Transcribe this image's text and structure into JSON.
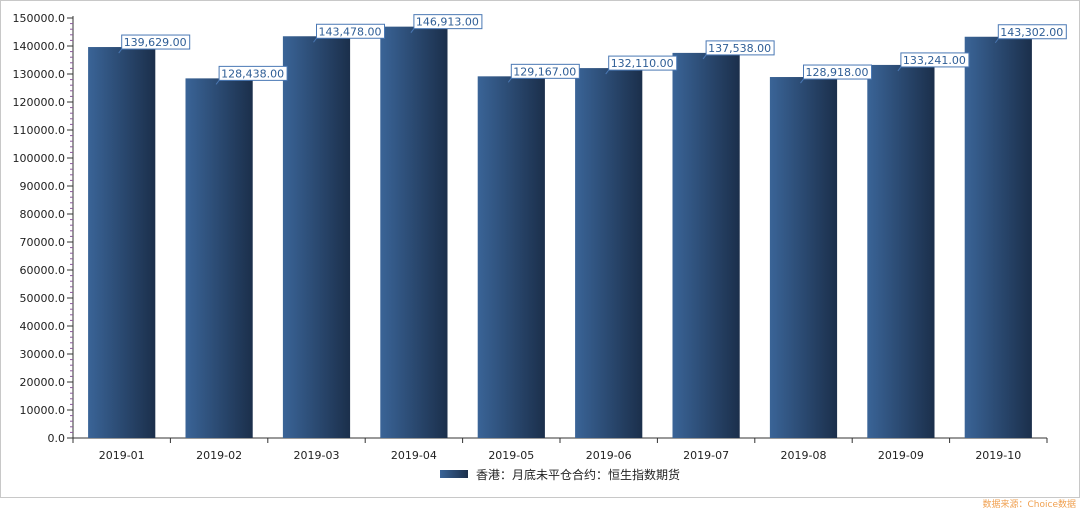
{
  "chart_data": {
    "type": "bar",
    "categories": [
      "2019-01",
      "2019-02",
      "2019-03",
      "2019-04",
      "2019-05",
      "2019-06",
      "2019-07",
      "2019-08",
      "2019-09",
      "2019-10"
    ],
    "series": [
      {
        "name": "香港：月底未平仓合约：恒生指数期货",
        "values": [
          139629,
          128438,
          143478,
          146913,
          129167,
          132110,
          137538,
          128918,
          133241,
          143302
        ],
        "labels": [
          "139,629.00",
          "128,438.00",
          "143,478.00",
          "146,913.00",
          "129,167.00",
          "132,110.00",
          "137,538.00",
          "128,918.00",
          "133,241.00",
          "143,302.00"
        ]
      }
    ],
    "y_ticks": [
      "0.0",
      "10000.0",
      "20000.0",
      "30000.0",
      "40000.0",
      "50000.0",
      "60000.0",
      "70000.0",
      "80000.0",
      "90000.0",
      "100000.0",
      "110000.0",
      "120000.0",
      "130000.0",
      "140000.0",
      "150000.0"
    ],
    "ylim": [
      0,
      150000
    ],
    "title": "",
    "xlabel": "",
    "ylabel": "",
    "grid": false,
    "legend_position": "bottom-center",
    "colors": {
      "bar_light": "#3a6497",
      "bar_dark": "#1b2f4b",
      "label_border": "#4a78b4",
      "label_text": "#2f5e96",
      "source_text": "#f0a050"
    }
  },
  "source_note": "数据来源：Choice数据"
}
